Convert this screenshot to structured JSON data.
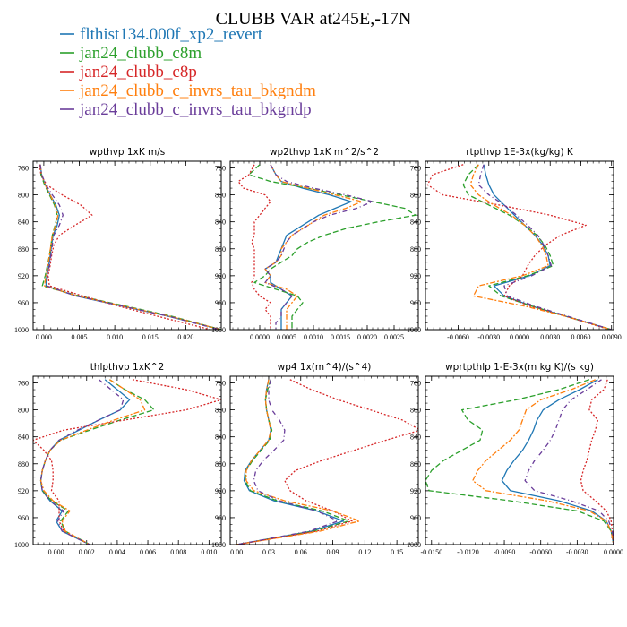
{
  "title": "CLUBB VAR at245E,-17N",
  "legend": [
    {
      "name": "flthist134.000f_xp2_revert",
      "color": "#1f77b4"
    },
    {
      "name": "jan24_clubb_c8m",
      "color": "#2ca02c"
    },
    {
      "name": "jan24_clubb_c8p",
      "color": "#d62728"
    },
    {
      "name": "jan24_clubb_c_invrs_tau_bkgndm",
      "color": "#ff7f0e"
    },
    {
      "name": "jan24_clubb_c_invrs_tau_bkgndp",
      "color": "#6a3d9a"
    }
  ],
  "chart_data": [
    {
      "type": "line",
      "title": "wpthvp   1xK m/s",
      "ylim": [
        1000,
        750
      ],
      "yticks": [
        760,
        800,
        840,
        880,
        920,
        960,
        1000
      ],
      "xlim": [
        -0.0015,
        0.025
      ],
      "xticks": [
        0,
        0.005,
        0.01,
        0.015,
        0.02
      ],
      "xtick_labels": [
        "0.000",
        "0.005",
        "0.010",
        "0.015",
        "0.020"
      ],
      "y": [
        755,
        770,
        785,
        800,
        815,
        830,
        845,
        860,
        875,
        890,
        905,
        920,
        935,
        950,
        965,
        980,
        1000
      ],
      "series": [
        {
          "name": "flthist134.000f_xp2_revert",
          "values": [
            -0.0005,
            -0.0003,
            0.0002,
            0.0009,
            0.0017,
            0.0022,
            0.0019,
            0.0013,
            0.0011,
            0.0009,
            0.0007,
            0.0004,
            0.0003,
            0.0045,
            0.011,
            0.0175,
            0.025
          ]
        },
        {
          "name": "jan24_clubb_c8m",
          "values": [
            -0.0005,
            -0.0004,
            0.0001,
            0.0008,
            0.0015,
            0.0019,
            0.0016,
            0.0012,
            0.001,
            0.0008,
            0.0005,
            0.0002,
            -0.0002,
            0.005,
            0.0115,
            0.018,
            0.025
          ]
        },
        {
          "name": "jan24_clubb_c8p",
          "values": [
            -0.0006,
            -0.0004,
            0.0004,
            0.0026,
            0.0052,
            0.0068,
            0.0044,
            0.0022,
            0.0014,
            0.0011,
            0.0009,
            0.0006,
            0.0008,
            0.0055,
            0.0105,
            0.016,
            0.0235
          ]
        },
        {
          "name": "jan24_clubb_c_invrs_tau_bkgndm",
          "values": [
            -0.0005,
            -0.0003,
            0.0002,
            0.0009,
            0.0016,
            0.002,
            0.0017,
            0.0012,
            0.001,
            0.0008,
            0.0006,
            0.0003,
            0.0001,
            0.0047,
            0.0112,
            0.0177,
            0.025
          ]
        },
        {
          "name": "jan24_clubb_c_invrs_tau_bkgndp",
          "values": [
            -0.0005,
            -0.0003,
            0.0003,
            0.0012,
            0.0022,
            0.0027,
            0.0022,
            0.0014,
            0.0012,
            0.001,
            0.0008,
            0.0005,
            0.0004,
            0.0046,
            0.0111,
            0.0175,
            0.0248
          ]
        }
      ]
    },
    {
      "type": "line",
      "title": "wp2thvp   1xK m^2/s^2",
      "ylim": [
        1000,
        750
      ],
      "yticks": [
        760,
        800,
        840,
        880,
        920,
        960,
        1000
      ],
      "xlim": [
        -0.00055,
        0.00295
      ],
      "xticks": [
        0,
        0.0005,
        0.001,
        0.0015,
        0.002,
        0.0025
      ],
      "xtick_labels": [
        "0.0000",
        "0.0005",
        "0.0010",
        "0.0015",
        "0.0020",
        "0.0025"
      ],
      "y": [
        755,
        770,
        780,
        790,
        800,
        810,
        820,
        830,
        840,
        850,
        860,
        870,
        880,
        890,
        900,
        910,
        920,
        930,
        940,
        950,
        960,
        970,
        980,
        990,
        1000
      ],
      "series": [
        {
          "name": "flthist134.000f_xp2_revert",
          "values": [
            0.0002,
            0.0003,
            0.0004,
            0.0008,
            0.0013,
            0.0017,
            0.0014,
            0.0011,
            0.0009,
            0.0007,
            0.0005,
            0.00045,
            0.0004,
            0.00035,
            0.0003,
            0.0001,
            0.0002,
            0.0002,
            0.0004,
            0.0006,
            0.0005,
            0.0004,
            0.0004,
            0.0004,
            0.0004
          ]
        },
        {
          "name": "jan24_clubb_c8m",
          "values": [
            0.0,
            -0.0002,
            0.0002,
            0.0009,
            0.0015,
            0.0021,
            0.0027,
            0.0029,
            0.0022,
            0.0016,
            0.0012,
            0.0009,
            0.0007,
            0.0006,
            0.0004,
            0.0002,
            0.0001,
            -0.0001,
            0.0003,
            0.0007,
            0.0008,
            0.0007,
            0.0006,
            0.0006,
            0.0006
          ]
        },
        {
          "name": "jan24_clubb_c8p",
          "values": [
            -0.0001,
            -0.0002,
            -0.0004,
            -0.0003,
            0.0001,
            0.0002,
            0.0001,
            0.0,
            -0.0001,
            -0.0001,
            -0.0001,
            -0.00015,
            -0.0001,
            -0.0001,
            -0.0001,
            -0.0001,
            -0.0001,
            -0.00015,
            -0.0001,
            0.0,
            0.0002,
            0.0001,
            0.0002,
            0.0002,
            0.0002
          ]
        },
        {
          "name": "jan24_clubb_c_invrs_tau_bkgndm",
          "values": [
            0.0002,
            0.0003,
            0.0004,
            0.0009,
            0.0014,
            0.0019,
            0.0016,
            0.0012,
            0.001,
            0.0008,
            0.0006,
            0.0005,
            0.0004,
            0.0004,
            0.0003,
            0.0001,
            0.0002,
            0.0001,
            0.0005,
            0.0007,
            0.0006,
            0.0005,
            0.0005,
            0.0005,
            0.0005
          ]
        },
        {
          "name": "jan24_clubb_c_invrs_tau_bkgndp",
          "values": [
            0.0002,
            0.0003,
            0.0005,
            0.001,
            0.0016,
            0.0021,
            0.0018,
            0.0013,
            0.001,
            0.0008,
            0.0006,
            0.0005,
            0.00045,
            0.0004,
            0.0003,
            0.0001,
            0.0002,
            0.0001,
            0.0004,
            0.0006,
            0.0005,
            0.0004,
            0.0004,
            0.0003,
            0.0003
          ]
        }
      ]
    },
    {
      "type": "line",
      "title": "rtpthvp   1E-3x(kg/kg) K",
      "ylim": [
        1000,
        750
      ],
      "yticks": [
        760,
        800,
        840,
        880,
        920,
        960,
        1000
      ],
      "xlim": [
        -0.0092,
        0.0092
      ],
      "xticks": [
        -0.006,
        -0.003,
        0,
        0.003,
        0.006,
        0.009
      ],
      "xtick_labels": [
        "-0.0060",
        "-0.0030",
        "0.0000",
        "0.0030",
        "0.0060",
        "0.0090"
      ],
      "y": [
        755,
        770,
        785,
        800,
        815,
        830,
        845,
        860,
        875,
        890,
        905,
        920,
        935,
        950,
        965,
        980,
        1000
      ],
      "series": [
        {
          "name": "flthist134.000f_xp2_revert",
          "values": [
            -0.0035,
            -0.0033,
            -0.003,
            -0.0025,
            -0.0015,
            -0.0005,
            0.0005,
            0.0015,
            0.0023,
            0.0028,
            0.003,
            0.001,
            -0.0025,
            -0.0015,
            0.0012,
            0.0045,
            0.009
          ]
        },
        {
          "name": "jan24_clubb_c8m",
          "values": [
            -0.004,
            -0.005,
            -0.0055,
            -0.005,
            -0.003,
            -0.001,
            0.0005,
            0.0017,
            0.0025,
            0.003,
            0.0033,
            0.0008,
            -0.003,
            -0.0018,
            0.0012,
            0.0045,
            0.009
          ]
        },
        {
          "name": "jan24_clubb_c8p",
          "values": [
            -0.0055,
            -0.0085,
            -0.009,
            -0.0075,
            -0.002,
            0.003,
            0.0065,
            0.004,
            0.0025,
            0.0015,
            0.0008,
            0.0003,
            -0.001,
            -0.0015,
            0.001,
            0.0045,
            0.0088
          ]
        },
        {
          "name": "jan24_clubb_c_invrs_tau_bkgndm",
          "values": [
            -0.004,
            -0.0045,
            -0.0048,
            -0.004,
            -0.0025,
            -0.0008,
            0.0005,
            0.0015,
            0.0022,
            0.0026,
            0.0028,
            0.0003,
            -0.004,
            -0.0045,
            0.0005,
            0.0045,
            0.009
          ]
        },
        {
          "name": "jan24_clubb_c_invrs_tau_bkgndp",
          "values": [
            -0.0035,
            -0.0038,
            -0.004,
            -0.003,
            -0.0015,
            -0.0003,
            0.0008,
            0.0018,
            0.0024,
            0.0028,
            0.0031,
            0.0012,
            -0.0015,
            -0.0012,
            0.0015,
            0.0047,
            0.009
          ]
        }
      ]
    },
    {
      "type": "line",
      "title": "thlpthvp   1xK^2",
      "ylim": [
        1000,
        750
      ],
      "yticks": [
        760,
        800,
        840,
        880,
        920,
        960,
        1000
      ],
      "xlim": [
        -0.0015,
        0.0108
      ],
      "xticks": [
        0,
        0.002,
        0.004,
        0.006,
        0.008,
        0.01
      ],
      "xtick_labels": [
        "0.000",
        "0.002",
        "0.004",
        "0.006",
        "0.008",
        "0.010"
      ],
      "y": [
        755,
        770,
        785,
        800,
        815,
        830,
        845,
        860,
        875,
        890,
        905,
        920,
        935,
        950,
        965,
        980,
        1000
      ],
      "series": [
        {
          "name": "flthist134.000f_xp2_revert",
          "values": [
            0.0032,
            0.004,
            0.0048,
            0.0042,
            0.0028,
            0.0015,
            0.0002,
            -0.0004,
            -0.0007,
            -0.0009,
            -0.001,
            -0.0009,
            -0.0004,
            0.0004,
            0.0,
            0.0004,
            0.0022
          ]
        },
        {
          "name": "jan24_clubb_c8m",
          "values": [
            0.0035,
            0.0045,
            0.0058,
            0.0064,
            0.0042,
            0.0022,
            0.0003,
            -0.0004,
            -0.0007,
            -0.0009,
            -0.001,
            -0.0009,
            -0.0003,
            0.0008,
            0.0003,
            0.0006,
            0.0022
          ]
        },
        {
          "name": "jan24_clubb_c8p",
          "values": [
            0.005,
            0.0085,
            0.0108,
            0.0085,
            0.0045,
            0.0005,
            -0.0015,
            -0.0008,
            -0.0003,
            -0.0002,
            -0.0002,
            -0.0003,
            0.0002,
            0.0002,
            0.0002,
            0.0005,
            0.0022
          ]
        },
        {
          "name": "jan24_clubb_c_invrs_tau_bkgndm",
          "values": [
            0.0035,
            0.0045,
            0.0055,
            0.0058,
            0.0038,
            0.002,
            0.0003,
            -0.0004,
            -0.0007,
            -0.0009,
            -0.001,
            -0.0008,
            -0.0002,
            0.0009,
            0.0004,
            0.0006,
            0.0022
          ]
        },
        {
          "name": "jan24_clubb_c_invrs_tau_bkgndp",
          "values": [
            0.0028,
            0.0036,
            0.0044,
            0.0042,
            0.0028,
            0.0014,
            0.0002,
            -0.0004,
            -0.0007,
            -0.0009,
            -0.001,
            -0.0009,
            -0.0004,
            0.0005,
            0.0001,
            0.0004,
            0.0022
          ]
        }
      ]
    },
    {
      "type": "line",
      "title": "wp4   1x(m^4)/(s^4)",
      "ylim": [
        1000,
        750
      ],
      "yticks": [
        760,
        800,
        840,
        880,
        920,
        960,
        1000
      ],
      "xlim": [
        -0.006,
        0.17
      ],
      "xticks": [
        0,
        0.03,
        0.06,
        0.09,
        0.12,
        0.15
      ],
      "xtick_labels": [
        "0.00",
        "0.03",
        "0.06",
        "0.09",
        "0.12",
        "0.15"
      ],
      "y": [
        755,
        770,
        785,
        800,
        815,
        830,
        845,
        860,
        875,
        890,
        905,
        920,
        935,
        950,
        965,
        980,
        1000
      ],
      "series": [
        {
          "name": "flthist134.000f_xp2_revert",
          "values": [
            0.03,
            0.028,
            0.027,
            0.028,
            0.03,
            0.032,
            0.03,
            0.022,
            0.014,
            0.008,
            0.007,
            0.012,
            0.035,
            0.075,
            0.1,
            0.07,
            0.0
          ]
        },
        {
          "name": "jan24_clubb_c8m",
          "values": [
            0.032,
            0.029,
            0.027,
            0.028,
            0.03,
            0.033,
            0.031,
            0.023,
            0.015,
            0.009,
            0.008,
            0.013,
            0.038,
            0.08,
            0.105,
            0.072,
            0.0
          ]
        },
        {
          "name": "jan24_clubb_c8p",
          "values": [
            0.05,
            0.07,
            0.095,
            0.125,
            0.155,
            0.172,
            0.14,
            0.11,
            0.08,
            0.055,
            0.045,
            0.05,
            0.065,
            0.09,
            0.108,
            0.075,
            0.0
          ]
        },
        {
          "name": "jan24_clubb_c_invrs_tau_bkgndm",
          "values": [
            0.03,
            0.028,
            0.027,
            0.028,
            0.03,
            0.032,
            0.03,
            0.022,
            0.014,
            0.009,
            0.009,
            0.016,
            0.045,
            0.09,
            0.115,
            0.078,
            0.0
          ]
        },
        {
          "name": "jan24_clubb_c_invrs_tau_bkgndp",
          "values": [
            0.032,
            0.03,
            0.03,
            0.033,
            0.04,
            0.045,
            0.044,
            0.035,
            0.025,
            0.018,
            0.016,
            0.02,
            0.04,
            0.075,
            0.095,
            0.068,
            0.0
          ]
        }
      ]
    },
    {
      "type": "line",
      "title": "wprtpthlp   1-E-3x(m kg K)/(s kg)",
      "ylim": [
        1000,
        750
      ],
      "yticks": [
        760,
        800,
        840,
        880,
        920,
        960,
        1000
      ],
      "xlim": [
        -0.0155,
        0.0
      ],
      "xticks": [
        -0.015,
        -0.012,
        -0.009,
        -0.006,
        -0.003,
        0
      ],
      "xtick_labels": [
        "-0.0150",
        "-0.0120",
        "-0.0090",
        "-0.0060",
        "-0.0030",
        "0.0000"
      ],
      "y": [
        755,
        770,
        785,
        800,
        815,
        830,
        845,
        860,
        875,
        890,
        905,
        920,
        935,
        950,
        965,
        980,
        1000
      ],
      "series": [
        {
          "name": "flthist134.000f_xp2_revert",
          "values": [
            -0.0013,
            -0.0028,
            -0.0045,
            -0.0058,
            -0.0063,
            -0.0066,
            -0.007,
            -0.0075,
            -0.0082,
            -0.0088,
            -0.0092,
            -0.0085,
            -0.0045,
            -0.0018,
            -0.0006,
            -0.0002,
            0.0
          ]
        },
        {
          "name": "jan24_clubb_c8m",
          "values": [
            -0.002,
            -0.0045,
            -0.008,
            -0.0125,
            -0.012,
            -0.0108,
            -0.011,
            -0.0125,
            -0.014,
            -0.015,
            -0.0155,
            -0.0152,
            -0.0085,
            -0.003,
            -0.0008,
            -0.0002,
            0.0
          ]
        },
        {
          "name": "jan24_clubb_c8p",
          "values": [
            -0.0005,
            -0.0008,
            -0.0018,
            -0.002,
            -0.0013,
            -0.0015,
            -0.0018,
            -0.002,
            -0.0022,
            -0.0025,
            -0.0027,
            -0.0025,
            -0.0015,
            -0.0006,
            -0.0002,
            -0.0001,
            0.0
          ]
        },
        {
          "name": "jan24_clubb_c_invrs_tau_bkgndm",
          "values": [
            -0.0015,
            -0.0035,
            -0.006,
            -0.0072,
            -0.0075,
            -0.0078,
            -0.0085,
            -0.0095,
            -0.0105,
            -0.0112,
            -0.0116,
            -0.0105,
            -0.0055,
            -0.002,
            -0.0006,
            -0.0002,
            0.0
          ]
        },
        {
          "name": "jan24_clubb_c_invrs_tau_bkgndp",
          "values": [
            -0.001,
            -0.0022,
            -0.0035,
            -0.0042,
            -0.0045,
            -0.0048,
            -0.0052,
            -0.0058,
            -0.0065,
            -0.007,
            -0.0073,
            -0.0065,
            -0.0035,
            -0.0012,
            -0.0004,
            -0.0001,
            0.0
          ]
        }
      ]
    }
  ]
}
